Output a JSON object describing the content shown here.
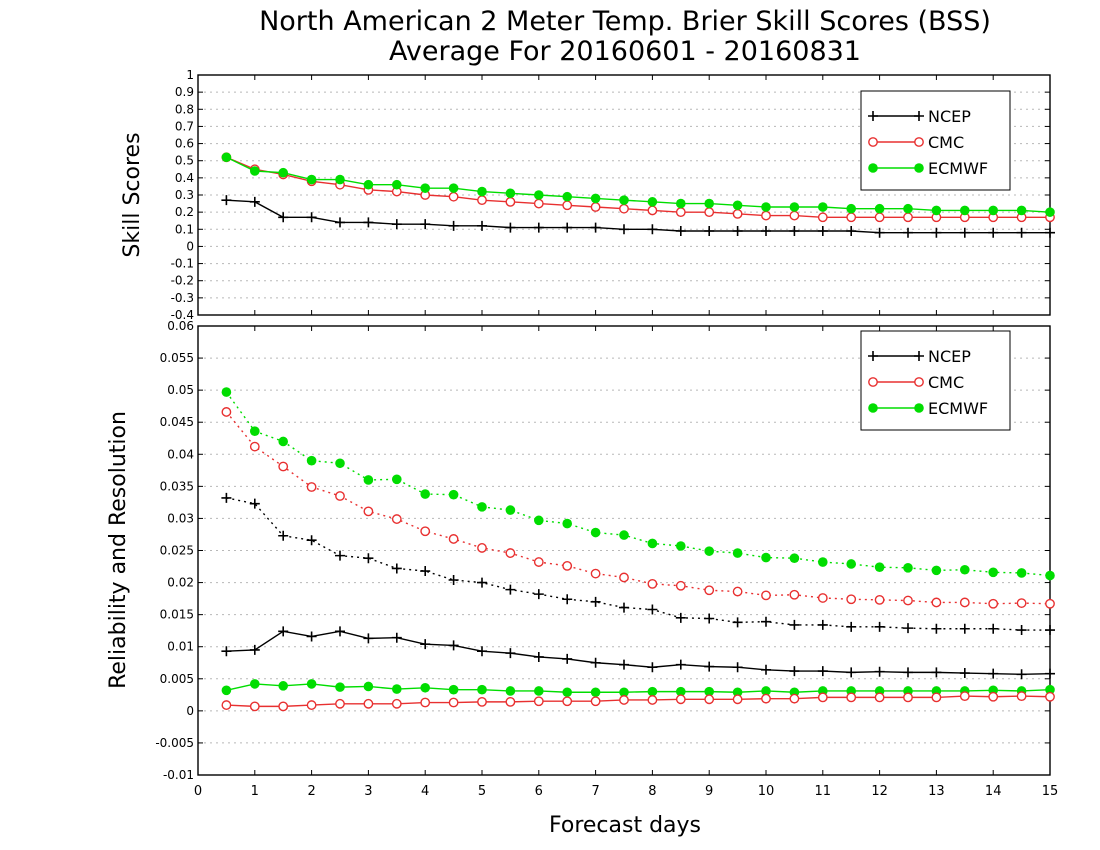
{
  "title_line1": "North American 2 Meter Temp. Brier Skill Scores (BSS)",
  "title_line2": "Average For 20160601 - 20160831",
  "xlabel": "Forecast days",
  "colors": {
    "NCEP": "#000000",
    "CMC": "#e83030",
    "ECMWF": "#00dd00"
  },
  "chart_data": [
    {
      "type": "line",
      "ylabel": "Skill Scores",
      "ylim": [
        -0.4,
        1
      ],
      "yticks": [
        "1",
        "0.9",
        "0.8",
        "0.7",
        "0.6",
        "0.5",
        "0.4",
        "0.3",
        "0.2",
        "0.1",
        "0",
        "-0.1",
        "-0.2",
        "-0.3",
        "-0.4"
      ],
      "xlim": [
        0,
        15
      ],
      "xticks": [
        "0",
        "1",
        "2",
        "3",
        "4",
        "5",
        "6",
        "7",
        "8",
        "9",
        "10",
        "11",
        "12",
        "13",
        "14",
        "15"
      ],
      "grid": true,
      "legend": "top-right",
      "x": [
        0.5,
        1,
        1.5,
        2,
        2.5,
        3,
        3.5,
        4,
        4.5,
        5,
        5.5,
        6,
        6.5,
        7,
        7.5,
        8,
        8.5,
        9,
        9.5,
        10,
        10.5,
        11,
        11.5,
        12,
        12.5,
        13,
        13.5,
        14,
        14.5,
        15
      ],
      "series": [
        {
          "name": "NCEP",
          "marker": "plus",
          "style": "solid",
          "values": [
            0.27,
            0.26,
            0.17,
            0.17,
            0.14,
            0.14,
            0.13,
            0.13,
            0.12,
            0.12,
            0.11,
            0.11,
            0.11,
            0.11,
            0.1,
            0.1,
            0.09,
            0.09,
            0.09,
            0.09,
            0.09,
            0.09,
            0.09,
            0.08,
            0.08,
            0.08,
            0.08,
            0.08,
            0.08,
            0.08
          ]
        },
        {
          "name": "CMC",
          "marker": "open-circle",
          "style": "solid",
          "values": [
            0.52,
            0.45,
            0.42,
            0.38,
            0.36,
            0.33,
            0.32,
            0.3,
            0.29,
            0.27,
            0.26,
            0.25,
            0.24,
            0.23,
            0.22,
            0.21,
            0.2,
            0.2,
            0.19,
            0.18,
            0.18,
            0.17,
            0.17,
            0.17,
            0.17,
            0.17,
            0.17,
            0.17,
            0.17,
            0.17
          ]
        },
        {
          "name": "ECMWF",
          "marker": "filled-circle",
          "style": "solid",
          "values": [
            0.52,
            0.44,
            0.43,
            0.39,
            0.39,
            0.36,
            0.36,
            0.34,
            0.34,
            0.32,
            0.31,
            0.3,
            0.29,
            0.28,
            0.27,
            0.26,
            0.25,
            0.25,
            0.24,
            0.23,
            0.23,
            0.23,
            0.22,
            0.22,
            0.22,
            0.21,
            0.21,
            0.21,
            0.21,
            0.2
          ]
        }
      ]
    },
    {
      "type": "line",
      "ylabel": "Reliability and Resolution",
      "ylim": [
        -0.01,
        0.06
      ],
      "yticks": [
        "0.06",
        "0.055",
        "0.05",
        "0.045",
        "0.04",
        "0.035",
        "0.03",
        "0.025",
        "0.02",
        "0.015",
        "0.01",
        "0.005",
        "0",
        "-0.005",
        "-0.01"
      ],
      "xlim": [
        0,
        15
      ],
      "xticks": [
        "0",
        "1",
        "2",
        "3",
        "4",
        "5",
        "6",
        "7",
        "8",
        "9",
        "10",
        "11",
        "12",
        "13",
        "14",
        "15"
      ],
      "grid": true,
      "legend": "top-right",
      "x": [
        0.5,
        1,
        1.5,
        2,
        2.5,
        3,
        3.5,
        4,
        4.5,
        5,
        5.5,
        6,
        6.5,
        7,
        7.5,
        8,
        8.5,
        9,
        9.5,
        10,
        10.5,
        11,
        11.5,
        12,
        12.5,
        13,
        13.5,
        14,
        14.5,
        15
      ],
      "series": [
        {
          "name": "NCEP",
          "marker": "plus",
          "style": "dotted",
          "values": [
            0.0332,
            0.0323,
            0.0273,
            0.0266,
            0.0242,
            0.0238,
            0.0222,
            0.0218,
            0.0204,
            0.02,
            0.0189,
            0.0182,
            0.0174,
            0.017,
            0.0161,
            0.0158,
            0.0145,
            0.0144,
            0.0138,
            0.0139,
            0.0134,
            0.0134,
            0.0131,
            0.0131,
            0.0129,
            0.0128,
            0.0128,
            0.0128,
            0.0126,
            0.0126
          ]
        },
        {
          "name": "CMC",
          "marker": "open-circle",
          "style": "dotted",
          "values": [
            0.0466,
            0.0412,
            0.0381,
            0.0349,
            0.0335,
            0.0311,
            0.0299,
            0.028,
            0.0268,
            0.0254,
            0.0246,
            0.0232,
            0.0226,
            0.0214,
            0.0208,
            0.0198,
            0.0195,
            0.0188,
            0.0186,
            0.018,
            0.0181,
            0.0176,
            0.0174,
            0.0173,
            0.0172,
            0.0169,
            0.0169,
            0.0167,
            0.0168,
            0.0167
          ]
        },
        {
          "name": "ECMWF",
          "marker": "filled-circle",
          "style": "dotted",
          "values": [
            0.0497,
            0.0436,
            0.042,
            0.039,
            0.0386,
            0.036,
            0.0361,
            0.0338,
            0.0337,
            0.0318,
            0.0313,
            0.0297,
            0.0292,
            0.0278,
            0.0274,
            0.0261,
            0.0257,
            0.0249,
            0.0246,
            0.0239,
            0.0238,
            0.0232,
            0.0229,
            0.0224,
            0.0223,
            0.0219,
            0.022,
            0.0216,
            0.0215,
            0.0211
          ]
        },
        {
          "name": "NCEP",
          "marker": "plus",
          "style": "solid",
          "values": [
            0.0093,
            0.0095,
            0.0124,
            0.0116,
            0.0124,
            0.0113,
            0.0114,
            0.0104,
            0.0102,
            0.0093,
            0.009,
            0.0084,
            0.0081,
            0.0075,
            0.0072,
            0.0068,
            0.0072,
            0.0069,
            0.0068,
            0.0064,
            0.0062,
            0.0062,
            0.006,
            0.0061,
            0.006,
            0.006,
            0.0059,
            0.0058,
            0.0057,
            0.0058
          ]
        },
        {
          "name": "ECMWF",
          "marker": "filled-circle",
          "style": "solid",
          "values": [
            0.0032,
            0.0042,
            0.0039,
            0.0042,
            0.0037,
            0.0038,
            0.0034,
            0.0036,
            0.0033,
            0.0033,
            0.0031,
            0.0031,
            0.0029,
            0.0029,
            0.0029,
            0.003,
            0.003,
            0.003,
            0.0029,
            0.0031,
            0.0029,
            0.0031,
            0.0031,
            0.0031,
            0.0031,
            0.0031,
            0.0031,
            0.0032,
            0.0031,
            0.0033
          ]
        },
        {
          "name": "CMC",
          "marker": "open-circle",
          "style": "solid",
          "values": [
            0.0009,
            0.0007,
            0.0007,
            0.0009,
            0.0011,
            0.0011,
            0.0011,
            0.0013,
            0.0013,
            0.0014,
            0.0014,
            0.0015,
            0.0015,
            0.0015,
            0.0017,
            0.0017,
            0.0018,
            0.0018,
            0.0018,
            0.0019,
            0.0019,
            0.0021,
            0.0021,
            0.0021,
            0.0021,
            0.0021,
            0.0023,
            0.0022,
            0.0023,
            0.0022
          ]
        }
      ]
    }
  ]
}
